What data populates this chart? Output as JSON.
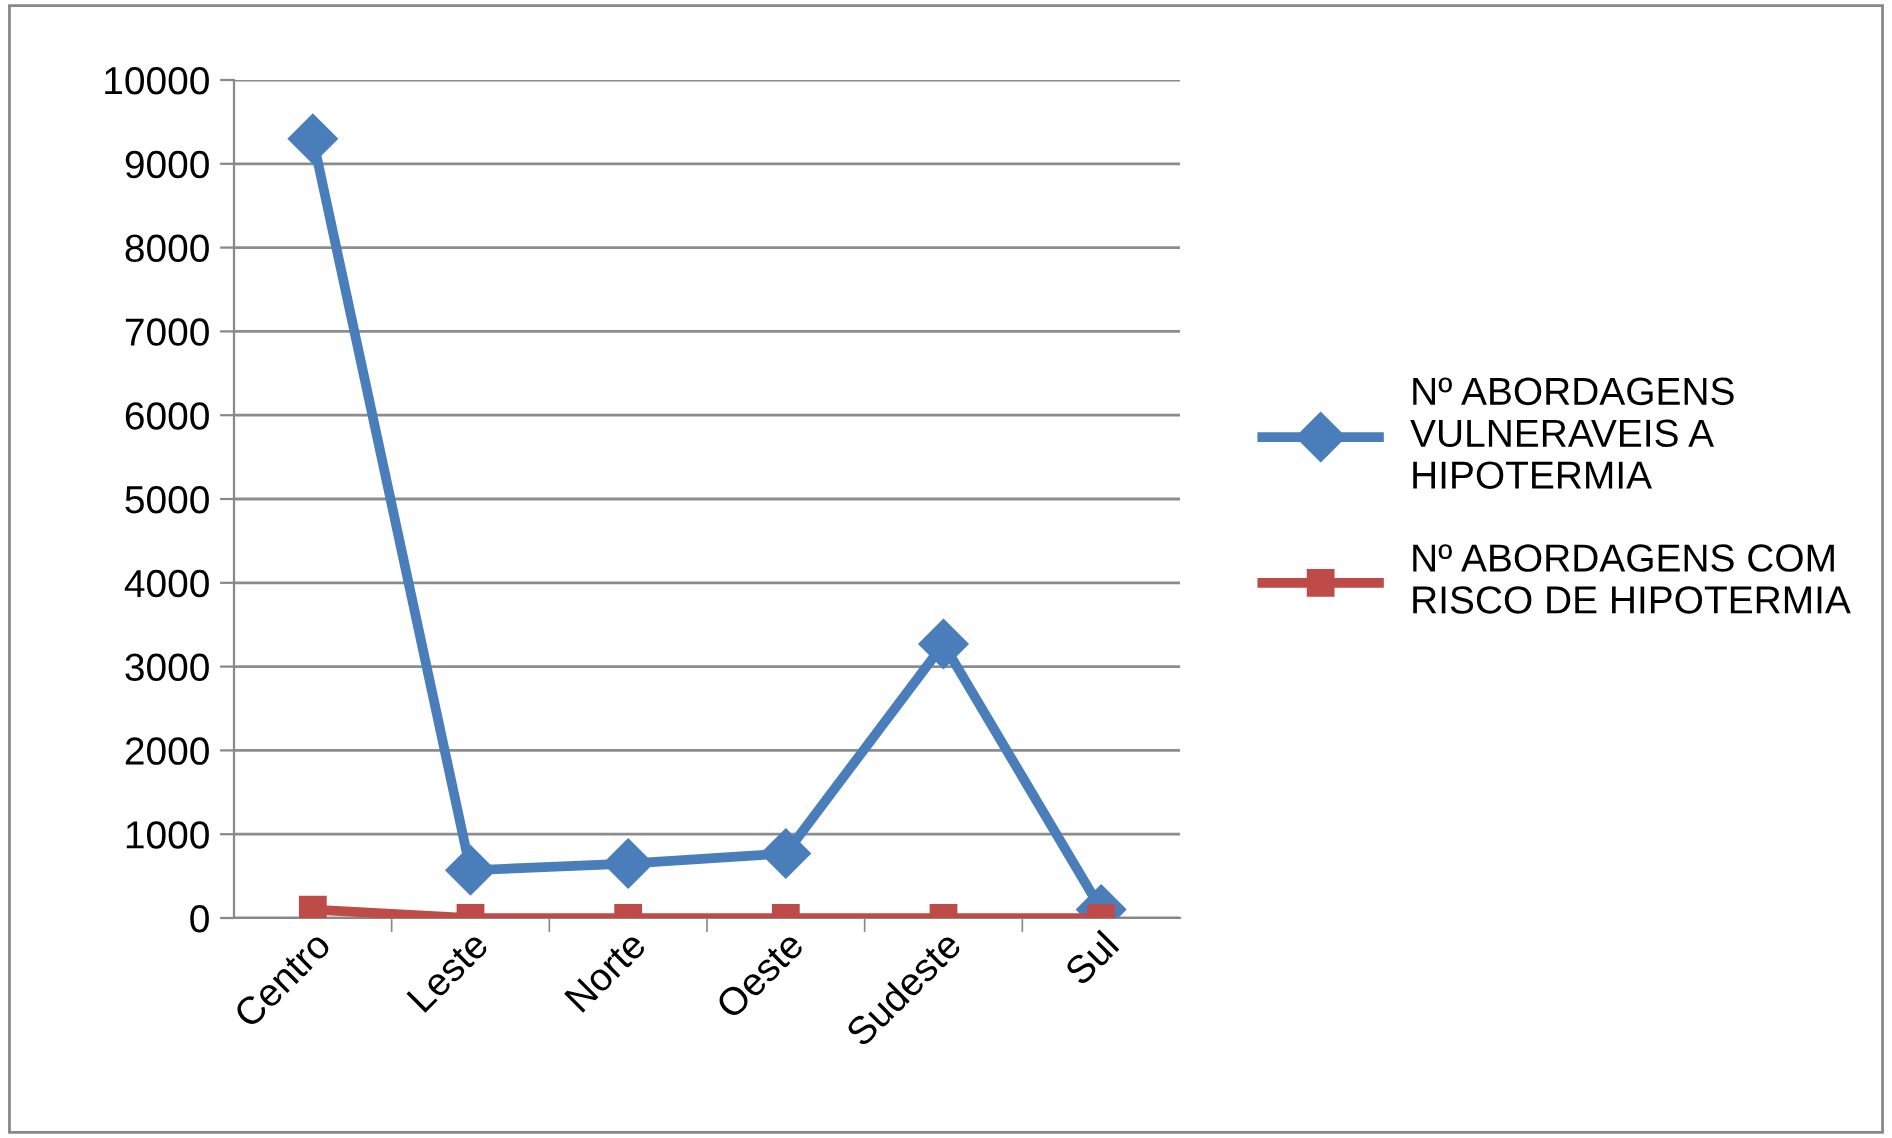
{
  "chart_data": {
    "type": "line",
    "categories": [
      "Centro",
      "Leste",
      "Norte",
      "Oeste",
      "Sudeste",
      "Sul"
    ],
    "series": [
      {
        "name": "Nº ABORDAGENS\nVULNERAVEIS A\nHIPOTERMIA",
        "color": "#4a7ebb",
        "marker": "diamond",
        "values": [
          9300,
          570,
          650,
          770,
          3270,
          100
        ]
      },
      {
        "name": "Nº ABORDAGENS COM\nRISCO DE HIPOTERMIA",
        "color": "#be4b48",
        "marker": "square",
        "values": [
          100,
          0,
          0,
          0,
          0,
          0
        ]
      }
    ],
    "ylim": [
      0,
      10000
    ],
    "yticks": [
      0,
      1000,
      2000,
      3000,
      4000,
      5000,
      6000,
      7000,
      8000,
      9000,
      10000
    ],
    "grid": "y",
    "legend": "right",
    "line_style": "solid"
  }
}
